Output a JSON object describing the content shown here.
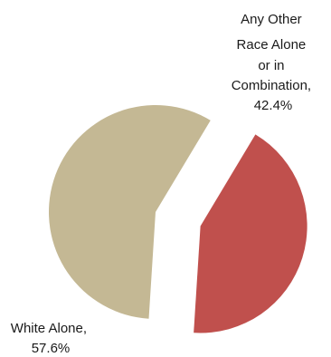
{
  "chart_data": {
    "type": "pie",
    "title": "",
    "exploded": true,
    "legend": "none",
    "slices": [
      {
        "name": "Any Other Race Alone or in Combination",
        "value": 42.4,
        "label_lines": [
          "Any Other",
          "Race Alone",
          "or in",
          "Combination,",
          "42.4%"
        ],
        "color": "#c0504d"
      },
      {
        "name": "White Alone",
        "value": 57.6,
        "label_lines": [
          "White Alone,",
          "57.6%"
        ],
        "color": "#c4b894"
      }
    ]
  }
}
